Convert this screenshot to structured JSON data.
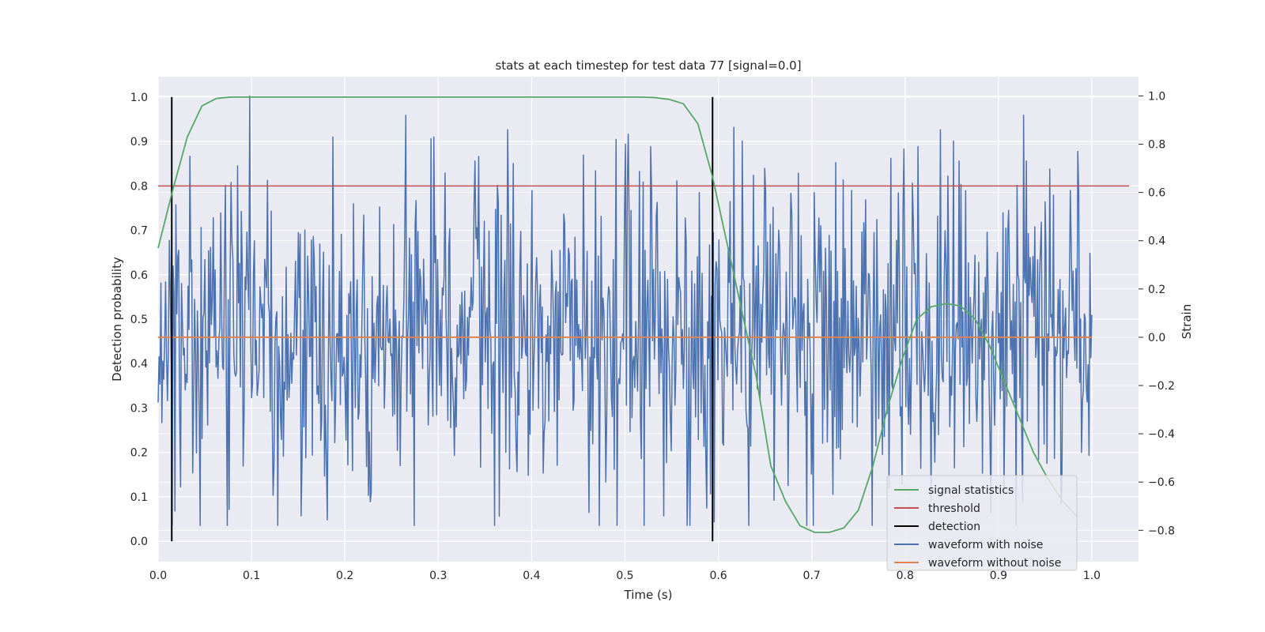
{
  "chart_data": {
    "type": "line",
    "title": "stats at each timestep for test data 77 [signal=0.0]",
    "xlabel": "Time (s)",
    "ylabel": "Detection probability",
    "y2label": "Strain",
    "xlim": [
      0.0,
      1.05
    ],
    "ylim": [
      -0.046,
      1.046
    ],
    "y2lim": [
      -0.93,
      1.08
    ],
    "x_ticks": [
      0.0,
      0.1,
      0.2,
      0.3,
      0.4,
      0.5,
      0.6,
      0.7,
      0.8,
      0.9,
      1.0
    ],
    "x_tick_labels": [
      "0.0",
      "0.1",
      "0.2",
      "0.3",
      "0.4",
      "0.5",
      "0.6",
      "0.7",
      "0.8",
      "0.9",
      "1.0"
    ],
    "y_ticks": [
      0.0,
      0.1,
      0.2,
      0.3,
      0.4,
      0.5,
      0.6,
      0.7,
      0.8,
      0.9,
      1.0
    ],
    "y_tick_labels": [
      "0.0",
      "0.1",
      "0.2",
      "0.3",
      "0.4",
      "0.5",
      "0.6",
      "0.7",
      "0.8",
      "0.9",
      "1.0"
    ],
    "y2_ticks": [
      -0.8,
      -0.6,
      -0.4,
      -0.2,
      0.0,
      0.2,
      0.4,
      0.6,
      0.8,
      1.0
    ],
    "y2_tick_labels": [
      "−0.8",
      "−0.6",
      "−0.4",
      "−0.2",
      "0.0",
      "0.2",
      "0.4",
      "0.6",
      "0.8",
      "1.0"
    ],
    "grid": true,
    "legend_position": "bottom-right",
    "series": [
      {
        "name": "signal statistics",
        "axis": "left",
        "color": "#55a868",
        "x": [
          0.0,
          0.0156,
          0.0312,
          0.0469,
          0.0625,
          0.0781,
          0.0938,
          0.1094,
          0.125,
          0.1406,
          0.1562,
          0.1719,
          0.1875,
          0.2031,
          0.2188,
          0.2344,
          0.25,
          0.2656,
          0.2812,
          0.2969,
          0.3125,
          0.3281,
          0.3438,
          0.3594,
          0.375,
          0.3906,
          0.4062,
          0.4219,
          0.4375,
          0.4531,
          0.4688,
          0.4844,
          0.5,
          0.5156,
          0.5312,
          0.5469,
          0.5625,
          0.5781,
          0.5938,
          0.6094,
          0.625,
          0.6406,
          0.6562,
          0.6719,
          0.6875,
          0.7031,
          0.7188,
          0.7344,
          0.75,
          0.7656,
          0.7812,
          0.7969,
          0.8125,
          0.8281,
          0.8438,
          0.8594,
          0.875,
          0.8906,
          0.9062,
          0.9219,
          0.9375,
          0.9531,
          0.9688,
          0.9844
        ],
        "values": [
          0.66,
          0.79,
          0.91,
          0.98,
          0.997,
          1.0,
          1.0,
          1.0,
          1.0,
          1.0,
          1.0,
          1.0,
          1.0,
          1.0,
          1.0,
          1.0,
          1.0,
          1.0,
          1.0,
          1.0,
          1.0,
          1.0,
          1.0,
          1.0,
          1.0,
          1.0,
          1.0,
          1.0,
          1.0,
          1.0,
          1.0,
          1.0,
          1.0,
          1.0,
          0.999,
          0.995,
          0.985,
          0.94,
          0.82,
          0.67,
          0.52,
          0.37,
          0.17,
          0.09,
          0.035,
          0.02,
          0.02,
          0.03,
          0.07,
          0.17,
          0.3,
          0.41,
          0.5,
          0.528,
          0.535,
          0.53,
          0.5,
          0.44,
          0.36,
          0.28,
          0.2,
          0.14,
          0.09,
          0.055
        ]
      },
      {
        "name": "threshold",
        "axis": "left",
        "color": "#c44e52",
        "x": [
          0.0,
          1.04
        ],
        "values": [
          0.8,
          0.8
        ]
      },
      {
        "name": "detection",
        "axis": "left",
        "color": "#000000",
        "segments": [
          {
            "x": 0.0146,
            "y": [
              0.0,
              1.0
            ]
          },
          {
            "x": 0.5938,
            "y": [
              0.0,
              1.0
            ]
          }
        ]
      },
      {
        "name": "waveform with noise",
        "axis": "right",
        "color": "#4c72b0",
        "x_range": [
          0.0,
          1.0
        ],
        "n_points": 1000,
        "std": 0.32,
        "range": [
          -0.8,
          1.0
        ],
        "peaks": [
          {
            "x": 0.0,
            "y": 0.38
          },
          {
            "x": 0.0,
            "y": -0.27
          },
          {
            "x": 0.015,
            "y": -0.78
          },
          {
            "x": 0.018,
            "y": -0.72
          },
          {
            "x": 0.034,
            "y": 0.75
          },
          {
            "x": 0.074,
            "y": -0.78
          },
          {
            "x": 0.085,
            "y": 0.71
          },
          {
            "x": 0.098,
            "y": 1.0
          },
          {
            "x": 0.117,
            "y": 0.65
          },
          {
            "x": 0.128,
            "y": -0.78
          },
          {
            "x": 0.153,
            "y": -0.74
          },
          {
            "x": 0.187,
            "y": 0.83
          },
          {
            "x": 0.295,
            "y": 0.83
          },
          {
            "x": 0.339,
            "y": 0.73
          },
          {
            "x": 0.36,
            "y": -0.78
          },
          {
            "x": 0.38,
            "y": 0.72
          },
          {
            "x": 0.468,
            "y": 0.69
          },
          {
            "x": 0.479,
            "y": -0.6
          },
          {
            "x": 0.49,
            "y": 0.82
          },
          {
            "x": 0.5,
            "y": 0.8
          },
          {
            "x": 0.528,
            "y": 0.79
          },
          {
            "x": 0.542,
            "y": -0.74
          },
          {
            "x": 0.58,
            "y": 0.6
          },
          {
            "x": 0.617,
            "y": 0.87
          },
          {
            "x": 0.633,
            "y": -0.78
          },
          {
            "x": 0.65,
            "y": 0.7
          },
          {
            "x": 0.686,
            "y": 0.68
          },
          {
            "x": 0.799,
            "y": 0.78
          },
          {
            "x": 0.814,
            "y": 0.79
          },
          {
            "x": 0.838,
            "y": 0.86
          },
          {
            "x": 0.858,
            "y": 0.73
          },
          {
            "x": 0.93,
            "y": 0.73
          },
          {
            "x": 0.985,
            "y": 0.77
          }
        ]
      },
      {
        "name": "waveform without noise",
        "axis": "right",
        "color": "#dd8452",
        "x": [
          0.0,
          1.0
        ],
        "values": [
          0.0,
          0.0
        ]
      }
    ],
    "legend": [
      {
        "label": "signal statistics",
        "color": "#55a868"
      },
      {
        "label": "threshold",
        "color": "#c44e52"
      },
      {
        "label": "detection",
        "color": "#000000"
      },
      {
        "label": "waveform with noise",
        "color": "#4c72b0"
      },
      {
        "label": "waveform without noise",
        "color": "#dd8452"
      }
    ]
  },
  "colors": {
    "plot_background": "#eaeaf2",
    "grid": "#ffffff",
    "text": "#262626"
  }
}
